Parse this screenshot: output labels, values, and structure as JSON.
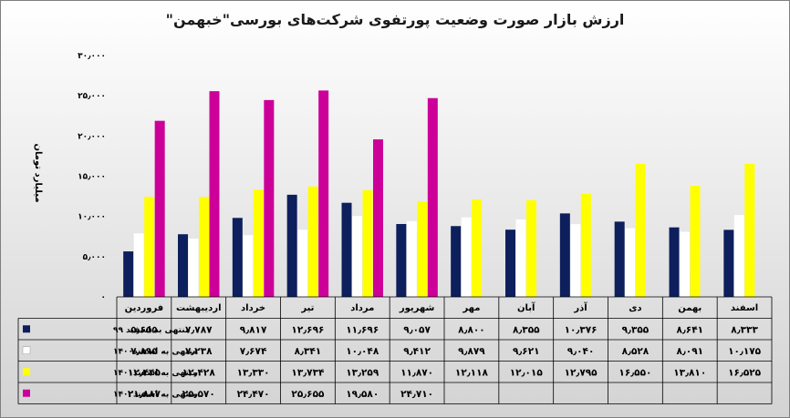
{
  "chart_data": {
    "type": "bar",
    "title": "ارزش بازار صورت وضعیت پورتفوی شرکت‌های بورسی\"خبهمن\"",
    "ylabel": "میلیارد تومان",
    "ylim": [
      0,
      30000
    ],
    "yticks": [
      "۰",
      "۵٫۰۰۰",
      "۱۰٫۰۰۰",
      "۱۵٫۰۰۰",
      "۲۰٫۰۰۰",
      "۲۵٫۰۰۰",
      "۳۰٫۰۰۰"
    ],
    "categories": [
      "فروردین",
      "اردیبهشت",
      "خرداد",
      "تیر",
      "مرداد",
      "شهریور",
      "مهر",
      "آبان",
      "آذر",
      "دی",
      "بهمن",
      "اسفند"
    ],
    "legend_position": "bottom-left data table",
    "series": [
      {
        "name": "منتهی به اسفند ۹۹",
        "color": "#0d1f5c",
        "values": [
          5655,
          7787,
          9817,
          12696,
          11696,
          9057,
          8800,
          8355,
          10376,
          9355,
          8641,
          8333
        ],
        "labels": [
          "۵٫۶۵۵",
          "۷٫۷۸۷",
          "۹٫۸۱۷",
          "۱۲٫۶۹۶",
          "۱۱٫۶۹۶",
          "۹٫۰۵۷",
          "۸٫۸۰۰",
          "۸٫۳۵۵",
          "۱۰٫۳۷۶",
          "۹٫۳۵۵",
          "۸٫۶۴۱",
          "۸٫۳۳۳"
        ]
      },
      {
        "name": "منتهی به اسفند۱۴۰۰",
        "color": "#ffffff",
        "values": [
          7895,
          7238,
          7674,
          8341,
          10048,
          9412,
          9879,
          9621,
          9040,
          8528,
          8091,
          10175
        ],
        "labels": [
          "۷٫۸۹۵",
          "۷٫۲۳۸",
          "۷٫۶۷۴",
          "۸٫۳۴۱",
          "۱۰٫۰۴۸",
          "۹٫۴۱۲",
          "۹٫۸۷۹",
          "۹٫۶۲۱",
          "۹٫۰۴۰",
          "۸٫۵۲۸",
          "۸٫۰۹۱",
          "۱۰٫۱۷۵"
        ]
      },
      {
        "name": "منتهی به اسفند۱۴۰۱",
        "color": "#ffff00",
        "values": [
          12445,
          12428,
          13330,
          13734,
          13259,
          11870,
          12118,
          12015,
          12795,
          16550,
          13810,
          16525
        ],
        "labels": [
          "۱۲٫۴۴۵",
          "۱۲٫۴۲۸",
          "۱۳٫۳۳۰",
          "۱۳٫۷۳۴",
          "۱۳٫۲۵۹",
          "۱۱٫۸۷۰",
          "۱۲٫۱۱۸",
          "۱۲٫۰۱۵",
          "۱۲٫۷۹۵",
          "۱۶٫۵۵۰",
          "۱۳٫۸۱۰",
          "۱۶٫۵۲۵"
        ]
      },
      {
        "name": "منتهی به اسفند۱۴۰۲",
        "color": "#cc0099",
        "values": [
          21887,
          25570,
          24470,
          25655,
          19580,
          24710,
          null,
          null,
          null,
          null,
          null,
          null
        ],
        "labels": [
          "۲۱٫۸۸۷",
          "۲۵٫۵۷۰",
          "۲۴٫۴۷۰",
          "۲۵٫۶۵۵",
          "۱۹٫۵۸۰",
          "۲۴٫۷۱۰",
          "",
          "",
          "",
          "",
          "",
          ""
        ]
      }
    ],
    "grid": false
  }
}
